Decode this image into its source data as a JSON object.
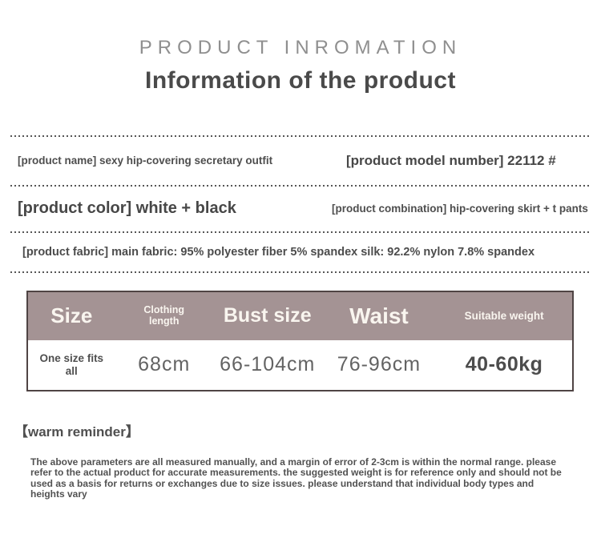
{
  "page": {
    "eyebrow": "PRODUCT INROMATION",
    "title": "Information of the product"
  },
  "details": {
    "product_name": "[product name] sexy hip-covering secretary outfit",
    "model_number": "[product model number] 22112 #",
    "color": "[product color] white + black",
    "combination": "[product combination] hip-covering skirt + t pants",
    "fabric": "[product fabric] main fabric: 95% polyester fiber 5% spandex silk: 92.2% nylon 7.8% spandex"
  },
  "size_table": {
    "columns": [
      "Size",
      "Clothing length",
      "Bust size",
      "Waist",
      "Suitable weight"
    ],
    "row": [
      "One size fits all",
      "68cm",
      "66-104cm",
      "76-96cm",
      "40-60kg"
    ],
    "header_bg": "#a49394",
    "header_text_color": "#f9f5ef",
    "border_color": "#4f4444"
  },
  "reminder": {
    "title": "【warm reminder】",
    "body": "The above parameters are all measured manually, and a margin of error of 2-3cm is within the normal range. please refer to the actual product for accurate measurements. the suggested weight is for reference only and should not be used as a basis for returns or exchanges due to size issues. please understand that individual body types and heights vary"
  }
}
